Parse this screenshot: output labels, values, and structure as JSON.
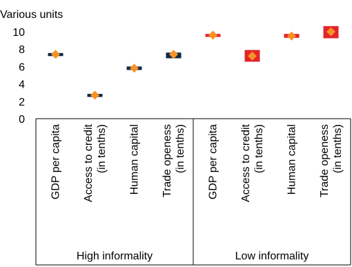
{
  "chart_data": {
    "type": "scatter",
    "ylabel": "Various units",
    "ylim": [
      0,
      10
    ],
    "yticks": [
      0,
      2,
      4,
      6,
      8,
      10
    ],
    "grid": false,
    "legend": "none",
    "groups": [
      "High informality",
      "Low informality"
    ],
    "categories": [
      "GDP per capita",
      "Access to credit (in tenths)",
      "Human capital",
      "Trade openess (in tenths)",
      "GDP per capita",
      "Access to credit (in tenths)",
      "Human capital",
      "Trade openess (in tenths)"
    ],
    "category_lines": [
      [
        "GDP per capita"
      ],
      [
        "Access to credit",
        "(in tenths)"
      ],
      [
        "Human capital"
      ],
      [
        "Trade openess",
        "(in tenths)"
      ],
      [
        "GDP per capita"
      ],
      [
        "Access to credit",
        "(in tenths)"
      ],
      [
        "Human capital"
      ],
      [
        "Trade openess",
        "(in tenths)"
      ]
    ],
    "series": [
      {
        "marker": "diamond",
        "values": [
          7.4,
          2.7,
          5.8,
          7.4,
          9.6,
          7.2,
          9.5,
          10.0
        ]
      }
    ],
    "range_boxes": [
      {
        "low": 7.2,
        "high": 7.55
      },
      {
        "low": 2.5,
        "high": 2.85
      },
      {
        "low": 5.6,
        "high": 6.0
      },
      {
        "low": 6.95,
        "high": 7.6
      },
      {
        "low": 9.4,
        "high": 9.75
      },
      {
        "low": 6.55,
        "high": 7.9
      },
      {
        "low": 9.3,
        "high": 9.75
      },
      {
        "low": 9.25,
        "high": 10.65
      }
    ],
    "colors": {
      "diamond": "#F79226",
      "box_high_informality": "#0F2A46",
      "box_low_informality": "#E3242B",
      "axis": "#000000"
    }
  }
}
